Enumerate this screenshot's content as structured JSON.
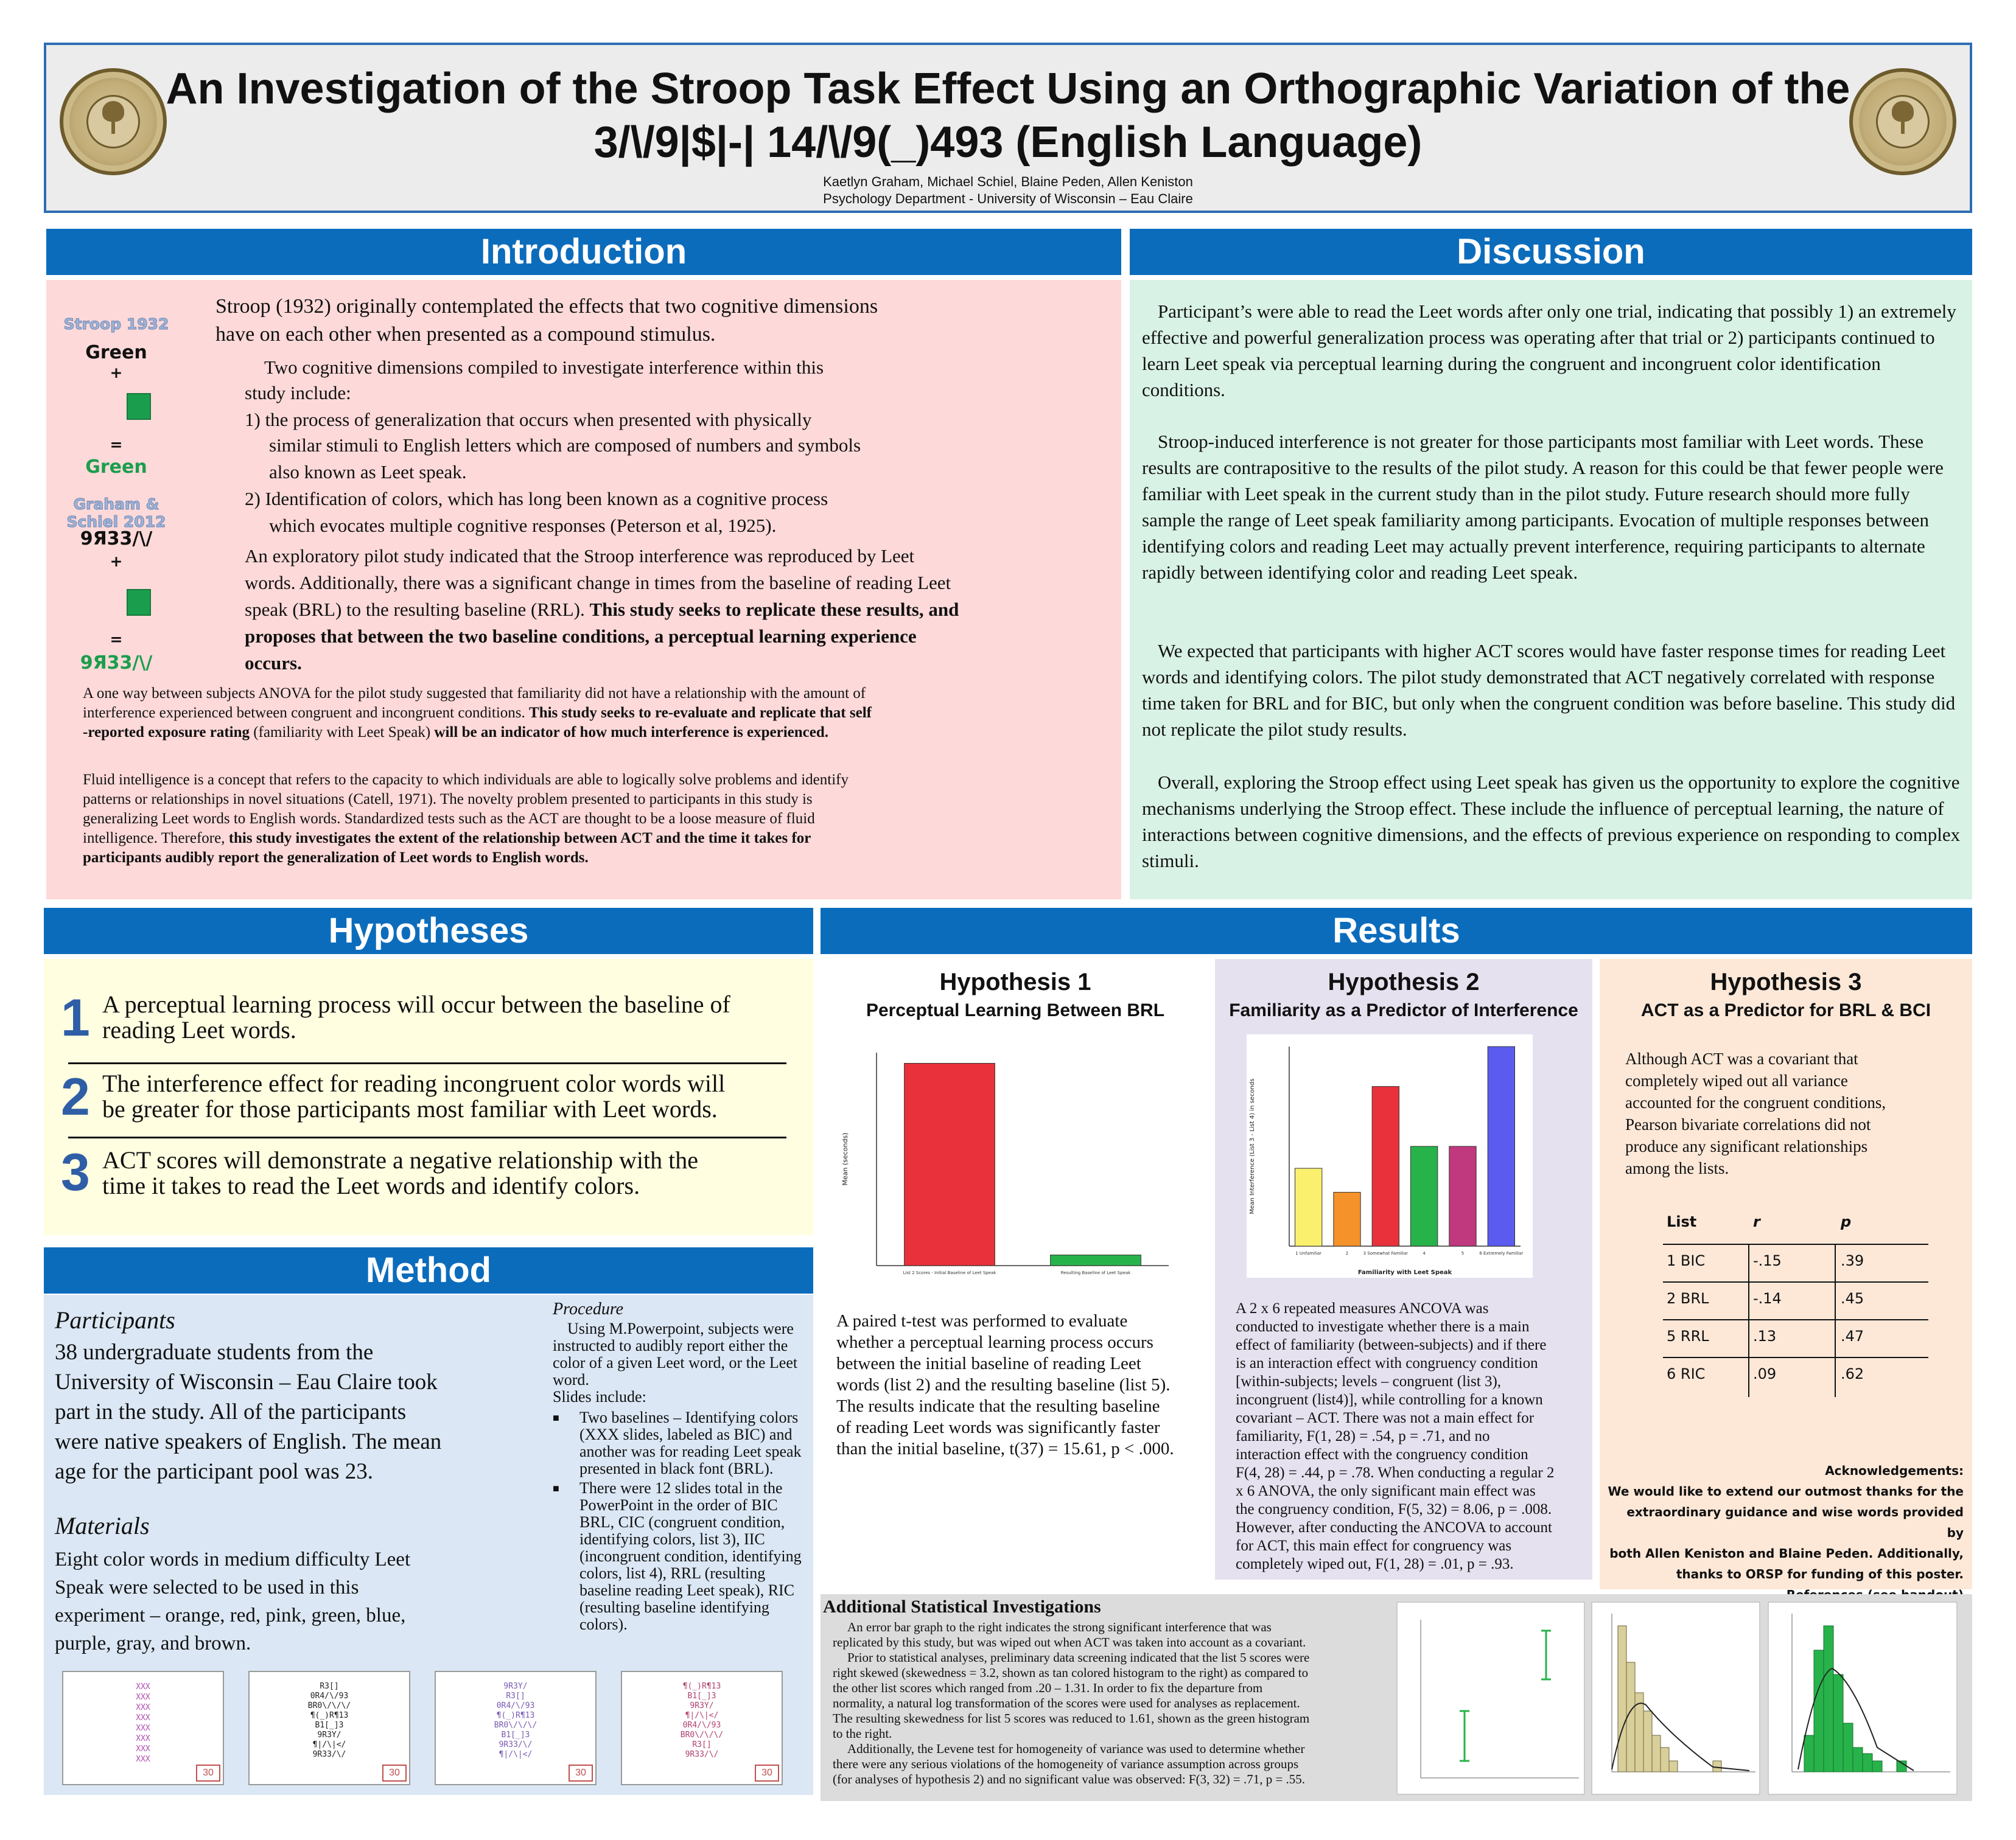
{
  "header": {
    "title_line1": "An Investigation of the Stroop Task Effect Using an Orthographic Variation of the",
    "title_line2": "3/\\/9|$|-| 14/\\/9(_)493 (English Language)",
    "authors": "Kaetlyn Graham, Michael Schiel, Blaine Peden, Allen Keniston",
    "department": "Psychology Department - University of Wisconsin – Eau Claire"
  },
  "sections": {
    "introduction": "Introduction",
    "discussion": "Discussion",
    "hypotheses": "Hypotheses",
    "results": "Results",
    "method": "Method"
  },
  "intro": {
    "side": {
      "label1": "Stroop 1932",
      "word1": "Green",
      "plus": "+",
      "equals": "=",
      "result1": "Green",
      "label2": "Graham & Schiel 2012",
      "word2": "9Я33/\\/",
      "result2": "9Я33/\\/"
    },
    "p1a": "Stroop (1932) originally contemplated the effects that two cognitive dimensions",
    "p1b": "have on each other when presented as a compound stimulus.",
    "p2": "Two cognitive dimensions compiled to investigate interference within this",
    "p2b": "study include:",
    "p2c": "1) the process of generalization that occurs when presented with physically",
    "p2d": "similar stimuli  to English letters which are composed of numbers and symbols",
    "p2e": "also known as Leet speak.",
    "p2f": "2)   Identification of colors, which has long been known as a cognitive process",
    "p2g": "which evocates multiple cognitive responses (Peterson et al, 1925).",
    "p3a": "An exploratory pilot study indicated that the Stroop interference was reproduced by Leet",
    "p3b": "words. Additionally, there was a significant change in times from the  baseline of reading Leet",
    "p3c": "speak (BRL) to the resulting baseline (RRL).",
    "p3c_bold": "This study seeks to replicate these results, and",
    "p3d_bold": "proposes that between the two baseline conditions, a perceptual learning experience",
    "p3e_bold": "occurs.",
    "p4a": "A one way between subjects ANOVA for the pilot study suggested that familiarity did not have a relationship with the amount of",
    "p4b": "interference experienced between congruent and incongruent conditions.",
    "p4b_bold": "This study seeks to re-evaluate and replicate that self",
    "p4c_bold": "-reported exposure rating",
    "p4c": "(familiarity with Leet Speak)",
    "p4c_bold2": "will be an indicator of how much interference is experienced.",
    "p5a": "Fluid intelligence is a concept that refers to the capacity to which individuals are able to logically solve problems and identify",
    "p5b": "patterns or relationships in novel situations (Catell, 1971). The novelty problem presented to participants in this study is",
    "p5c": "generalizing Leet words to English words. Standardized tests such as the ACT are thought to be a loose measure of fluid",
    "p5d": "intelligence. Therefore,",
    "p5d_bold": "this study investigates the extent of the relationship between ACT and the time it takes for",
    "p5e_bold": "participants audibly report the generalization of Leet words to English words."
  },
  "discussion": {
    "p1": "Participant’s were able to read the Leet words after only one trial, indicating that possibly 1) an extremely effective and powerful generalization process was operating after that trial or 2) participants continued to learn Leet speak via perceptual learning during the congruent and incongruent color identification conditions.",
    "p2": "Stroop-induced interference is not greater for those participants most familiar with Leet words.  These results are contrapositive to the results of the pilot study. A reason for this could be that fewer people were familiar with Leet speak in the current study than in the pilot study. Future research should more fully sample the range of Leet speak familiarity among participants. Evocation of multiple responses between identifying colors and reading Leet may actually prevent interference, requiring participants to alternate rapidly between identifying color and reading Leet speak.",
    "p3": "We expected that participants with higher ACT scores would have faster response times for reading Leet words and identifying colors. The pilot study demonstrated that ACT negatively correlated with response time taken for BRL and for BIC, but only when the congruent condition was before baseline. This study did not replicate the pilot study results.",
    "p4": "Overall, exploring the Stroop effect using Leet speak has given us the opportunity to explore the cognitive mechanisms underlying the Stroop effect. These include the influence of perceptual learning, the nature of interactions between cognitive dimensions, and the effects of previous experience on responding to complex stimuli."
  },
  "hypotheses": [
    {
      "num": "1",
      "line1": "A perceptual learning process will occur between the baseline of",
      "line2": "reading Leet words."
    },
    {
      "num": "2",
      "line1": "The interference effect for reading incongruent color words will",
      "line2": "be greater for those participants most familiar with Leet words."
    },
    {
      "num": "3",
      "line1": "ACT scores will demonstrate a negative relationship with the",
      "line2": "time it takes to read the Leet words and identify colors."
    }
  ],
  "method": {
    "participants_head": "Participants",
    "participants_lines": [
      "38 undergraduate students from the",
      "University of Wisconsin – Eau Claire took",
      "part in the study. All of the participants",
      "were native speakers of English. The mean",
      "age for the participant pool was 23."
    ],
    "materials_head": "Materials",
    "materials_lines": [
      "Eight color words in medium difficulty Leet",
      "Speak were selected to be used in this",
      "experiment – orange, red, pink, green, blue,",
      "purple, gray, and brown."
    ],
    "procedure_head": "Procedure",
    "procedure_lines": [
      "Using M.Powerpoint, subjects were",
      "instructed to audibly report either the",
      "color of a given Leet word, or the Leet",
      "word.",
      "Slides include:"
    ],
    "bullet1_lines": [
      "Two baselines – Identifying colors",
      "(XXX slides, labeled as BIC) and",
      "another was for reading Leet speak",
      "presented in black font (BRL)."
    ],
    "bullet2_lines": [
      "There were 12 slides total in the",
      "PowerPoint in the order of BIC",
      "BRL, CIC (congruent condition,",
      "identifying colors, list 3), IIC",
      "(incongruent condition, identifying",
      "colors, list 4), RRL (resulting",
      "baseline reading Leet speak), RIC",
      "(resulting baseline identifying",
      "colors)."
    ],
    "slides": [
      {
        "num": "30",
        "text": "XXX\nXXX\nXXX\nXXX\nXXX\nXXX\nXXX\nXXX"
      },
      {
        "num": "30",
        "text": "R3[]\n0R4/\\/93\nBR0\\/\\/\\/\n¶(_)R¶13\nB1[_]3\n9R3Y/\n¶|/\\|</\n9R33/\\/"
      },
      {
        "num": "30",
        "text": "9R3Y/\nR3[]\n0R4/\\/93\n¶(_)R¶13\nBR0\\/\\/\\/\nB1[_]3\n9R33/\\/\n¶|/\\|</"
      },
      {
        "num": "30",
        "text": "¶(_)R¶13\nB1[_]3\n9R3Y/\n¶|/\\|</\n0R4/\\/93\nBR0\\/\\/\\/\nR3[]\n9R33/\\/"
      }
    ]
  },
  "results": {
    "h1": {
      "title": "Hypothesis 1",
      "subtitle": "Perceptual Learning Between BRL",
      "text_lines": [
        "A paired t-test was performed to evaluate",
        "whether a perceptual learning process occurs",
        "between the initial baseline of reading Leet",
        "words (list 2) and the resulting baseline (list 5).",
        "The results indicate that the resulting baseline",
        "of reading Leet words was significantly faster",
        "than the initial baseline, t(37) = 15.61, p < .000."
      ]
    },
    "h2": {
      "title": "Hypothesis 2",
      "subtitle": "Familiarity as a Predictor of Interference",
      "text_lines": [
        "A 2 x 6  repeated measures ANCOVA was",
        "conducted to investigate whether there is a main",
        "effect of familiarity (between-subjects) and  if there",
        "is an interaction effect with congruency condition",
        "[within-subjects; levels – congruent (list 3),",
        "incongruent (list4)], while controlling for a known",
        "covariant – ACT. There was not a main effect for",
        "familiarity, F(1, 28) = .54, p = .71, and no",
        "interaction effect with the congruency condition",
        "F(4, 28) = .44, p = .78. When conducting a regular 2",
        "x 6 ANOVA, the only significant main effect was",
        "the congruency condition, F(5, 32) = 8.06, p = .008.",
        "However, after conducting the ANCOVA to account",
        "for ACT, this main effect for congruency was",
        "completely wiped out, F(1, 28) = .01, p = .93."
      ]
    },
    "h3": {
      "title": "Hypothesis 3",
      "subtitle": "ACT as a Predictor for BRL & BCI",
      "text_lines": [
        "Although ACT was a covariant that",
        "completely wiped out all variance",
        "accounted for the congruent conditions,",
        "Pearson bivariate correlations did not",
        "produce any significant relationships",
        "among the lists."
      ],
      "table": {
        "headers": [
          "List",
          "r",
          "p"
        ],
        "rows": [
          [
            "1 BIC",
            "-.15",
            ".39"
          ],
          [
            "2 BRL",
            "-.14",
            ".45"
          ],
          [
            "5 RRL",
            ".13",
            ".47"
          ],
          [
            "6 RIC",
            ".09",
            ".62"
          ]
        ]
      }
    },
    "ack_lines": [
      "Acknowledgements:",
      "We would like to extend our outmost thanks for the",
      "extraordinary guidance and wise words provided by",
      "both Allen Keniston and Blaine Peden. Additionally,",
      "thanks to ORSP for funding of this poster.",
      "References (see handout)"
    ],
    "additional": {
      "title": "Additional Statistical Investigations",
      "lines": [
        "An error bar graph to the right indicates the strong significant interference that was",
        "replicated by this study, but was wiped out when ACT was taken into account as a covariant.",
        "Prior to statistical analyses, preliminary data screening indicated that the list 5 scores were",
        "right skewed (skewedness = 3.2, shown as tan colored histogram to the right) as compared to",
        "the other list scores which ranged from .20 – 1.31. In order to fix the departure from",
        "normality, a natural log transformation of the scores were used for analyses as replacement.",
        "The resulting skewedness for list 5 scores was reduced to 1.61, shown as the green histogram",
        "to the right.",
        "Additionally, the Levene test for homogeneity of variance was used to determine whether",
        "there were any serious violations of the homogeneity of variance assumption across groups",
        "(for analyses of hypothesis 2) and no significant value was observed: F(3, 32) = .71, p = .55."
      ]
    }
  },
  "chart_data": [
    {
      "type": "bar",
      "categories": [
        "List 2 Scores - Initial Baseline of Leet Speak",
        "Resulting Baseline of Leet Speak"
      ],
      "values": [
        2.85,
        0.15
      ],
      "ylabel": "Mean (seconds)",
      "ylim": [
        0,
        3.0
      ],
      "colors": [
        "#e8313a",
        "#27b34a"
      ]
    },
    {
      "type": "bar",
      "categories": [
        "1 Unfamiliar",
        "2",
        "3 Somewhat Familiar",
        "4",
        "5",
        "6 Extremely Familiar"
      ],
      "values": [
        0.78,
        0.54,
        1.6,
        1.0,
        1.0,
        2.0
      ],
      "xlabel": "Familiarity with Leet Speak",
      "ylabel": "Mean Interference (List 3 - List 4) in seconds",
      "ylim": [
        0,
        2.0
      ],
      "colors": [
        "#fbf06d",
        "#f5922a",
        "#e8313a",
        "#27b34a",
        "#c0387d",
        "#5b5bf0"
      ]
    }
  ]
}
